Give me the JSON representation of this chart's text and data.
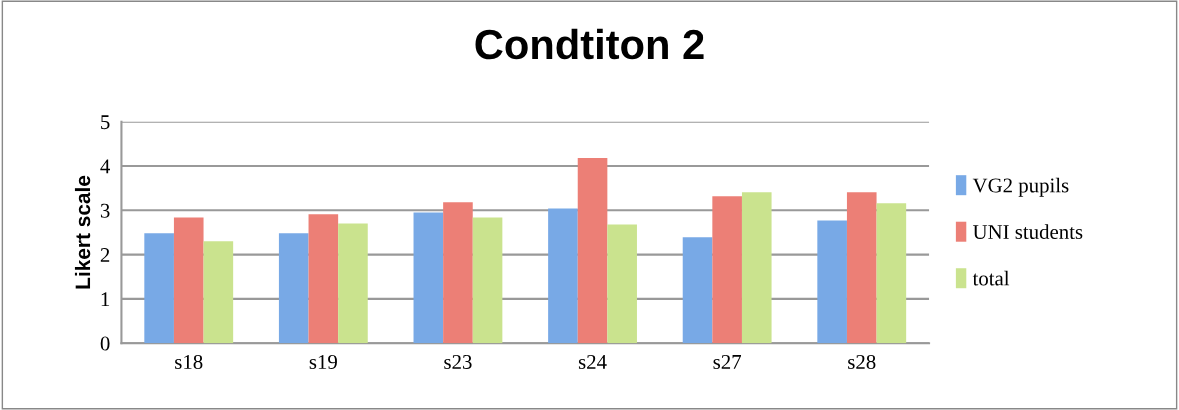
{
  "chart_data": {
    "type": "bar",
    "title": "Condtiton 2",
    "ylabel": "Likert scale",
    "categories": [
      "s18",
      "s19",
      "s23",
      "s24",
      "s27",
      "s28"
    ],
    "series": [
      {
        "name": "VG2 pupils",
        "color": "#78a9e6",
        "values": [
          2.48,
          2.48,
          2.95,
          3.04,
          2.39,
          2.77
        ]
      },
      {
        "name": "UNI students",
        "color": "#ec7f76",
        "values": [
          2.84,
          2.91,
          3.18,
          4.18,
          3.32,
          3.41
        ]
      },
      {
        "name": "total",
        "color": "#cae38e",
        "values": [
          2.3,
          2.7,
          2.84,
          2.68,
          3.41,
          3.16
        ]
      }
    ],
    "ylim": [
      0,
      5
    ],
    "yticks": [
      0,
      1,
      2,
      3,
      4,
      5
    ],
    "grid": "y",
    "legend": "right"
  }
}
